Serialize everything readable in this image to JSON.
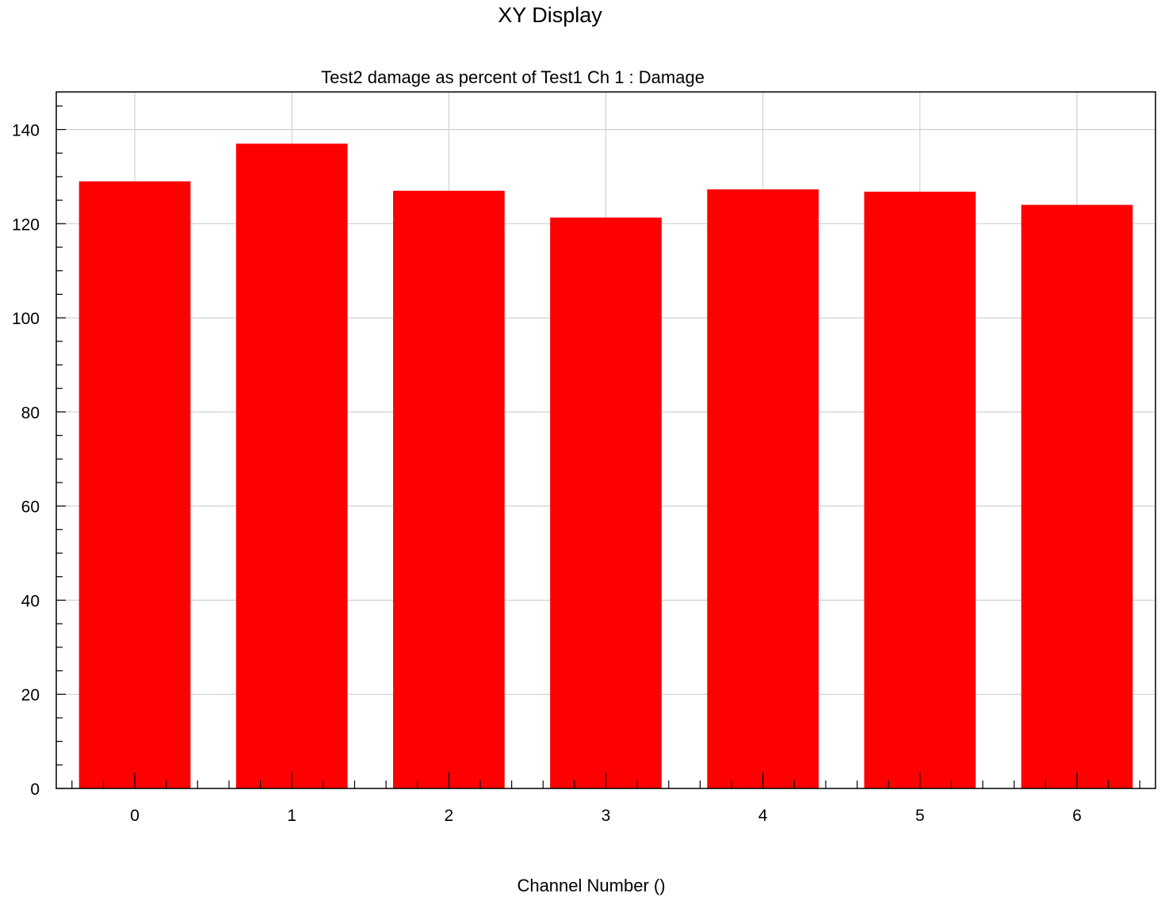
{
  "window": {
    "title": "XY Display"
  },
  "chart_data": {
    "type": "bar",
    "title": "Test2 damage as percent of Test1  Ch 1 : Damage",
    "xlabel": "Channel Number  ()",
    "ylabel": "",
    "categories": [
      "0",
      "1",
      "2",
      "3",
      "4",
      "5",
      "6"
    ],
    "values": [
      129,
      137,
      127,
      121.3,
      127.3,
      126.8,
      124
    ],
    "ylim": [
      0,
      148
    ],
    "xlim": [
      -0.5,
      6.5
    ],
    "yticks": [
      0,
      20,
      40,
      60,
      80,
      100,
      120,
      140
    ],
    "grid": true,
    "bar_color": "#ff0000"
  }
}
